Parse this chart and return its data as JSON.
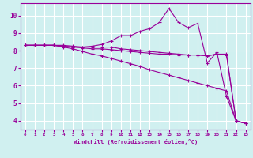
{
  "background_color": "#d0f0f0",
  "grid_color": "#ffffff",
  "line_color": "#990099",
  "xlabel": "Windchill (Refroidissement éolien,°C)",
  "xlim": [
    -0.5,
    23.5
  ],
  "ylim": [
    3.5,
    10.7
  ],
  "yticks": [
    4,
    5,
    6,
    7,
    8,
    9,
    10
  ],
  "xtick_labels": [
    "0",
    "1",
    "2",
    "3",
    "4",
    "5",
    "6",
    "7",
    "8",
    "9",
    "10",
    "11",
    "12",
    "13",
    "14",
    "15",
    "16",
    "17",
    "18",
    "19",
    "20",
    "21",
    "22",
    "23"
  ],
  "series": [
    [
      8.3,
      8.3,
      8.3,
      8.3,
      8.25,
      8.2,
      8.2,
      8.25,
      8.35,
      8.55,
      8.85,
      8.85,
      9.1,
      9.25,
      9.6,
      10.4,
      9.6,
      9.3,
      9.55,
      7.3,
      7.9,
      5.4,
      4.0,
      3.85
    ],
    [
      8.3,
      8.3,
      8.3,
      8.3,
      8.3,
      8.25,
      8.2,
      8.2,
      8.2,
      8.2,
      8.1,
      8.05,
      8.0,
      7.95,
      7.9,
      7.85,
      7.8,
      7.75,
      7.75,
      7.7,
      7.8,
      7.8,
      4.0,
      3.85
    ],
    [
      8.3,
      8.3,
      8.3,
      8.3,
      8.25,
      8.2,
      8.15,
      8.1,
      8.1,
      8.05,
      8.0,
      7.95,
      7.9,
      7.85,
      7.8,
      7.8,
      7.75,
      7.75,
      7.75,
      7.7,
      7.8,
      7.75,
      4.0,
      3.85
    ],
    [
      8.3,
      8.3,
      8.3,
      8.3,
      8.2,
      8.1,
      7.95,
      7.8,
      7.7,
      7.55,
      7.4,
      7.25,
      7.1,
      6.9,
      6.75,
      6.6,
      6.45,
      6.3,
      6.15,
      6.0,
      5.85,
      5.7,
      4.0,
      3.85
    ]
  ]
}
